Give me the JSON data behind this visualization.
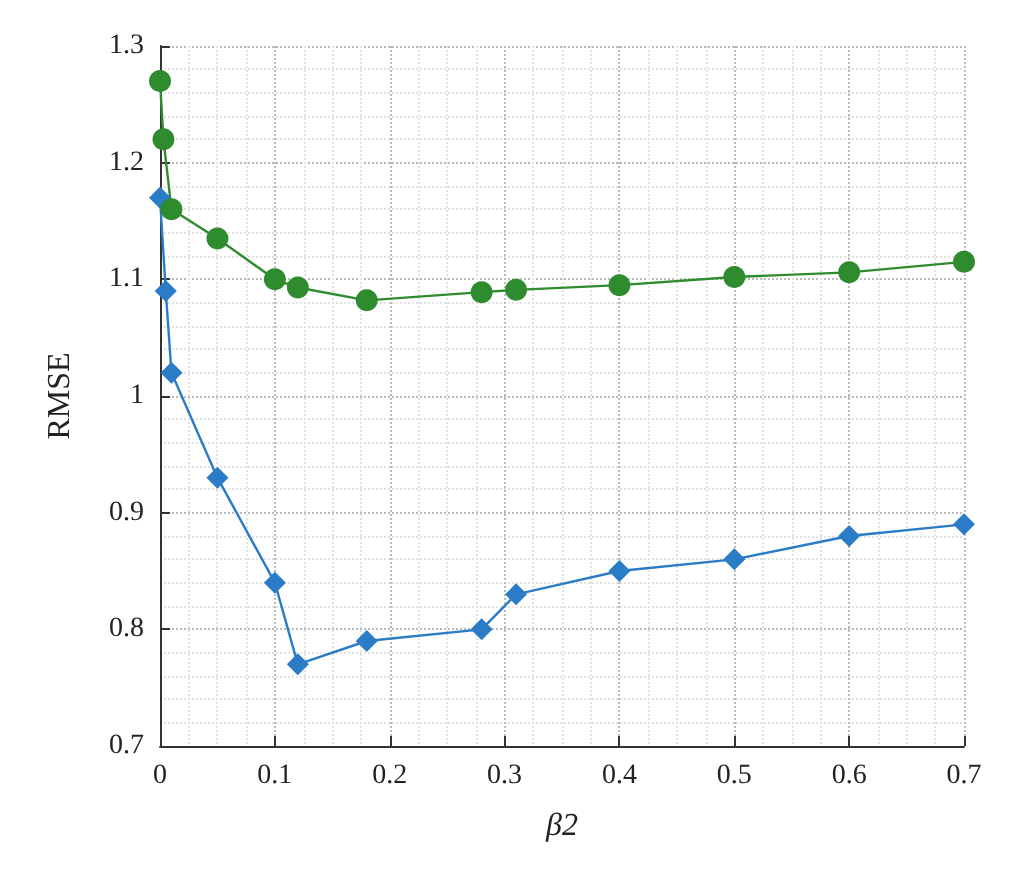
{
  "chart_data": {
    "type": "line",
    "xlabel": "β2",
    "ylabel": "RMSE",
    "xlim": [
      0,
      0.7
    ],
    "ylim": [
      0.7,
      1.3
    ],
    "xticks": [
      0,
      0.1,
      0.2,
      0.3,
      0.4,
      0.5,
      0.6,
      0.7
    ],
    "yticks": [
      0.7,
      0.8,
      0.9,
      1,
      1.1,
      1.2,
      1.3
    ],
    "grid": true,
    "legend": false,
    "line_style": "solid",
    "series": [
      {
        "color": "#2a7cc7",
        "marker": "diamond",
        "x": [
          0,
          0.005,
          0.01,
          0.05,
          0.1,
          0.12,
          0.18,
          0.28,
          0.31,
          0.4,
          0.5,
          0.6,
          0.7
        ],
        "values": [
          1.17,
          1.09,
          1.02,
          0.93,
          0.84,
          0.77,
          0.79,
          0.8,
          0.83,
          0.85,
          0.86,
          0.88,
          0.89
        ]
      },
      {
        "color": "#2e8b2e",
        "marker": "circle",
        "x": [
          0,
          0.003,
          0.01,
          0.05,
          0.1,
          0.12,
          0.18,
          0.28,
          0.31,
          0.4,
          0.5,
          0.6,
          0.7
        ],
        "values": [
          1.27,
          1.22,
          1.16,
          1.135,
          1.1,
          1.093,
          1.082,
          1.089,
          1.091,
          1.095,
          1.102,
          1.106,
          1.115
        ]
      }
    ]
  }
}
